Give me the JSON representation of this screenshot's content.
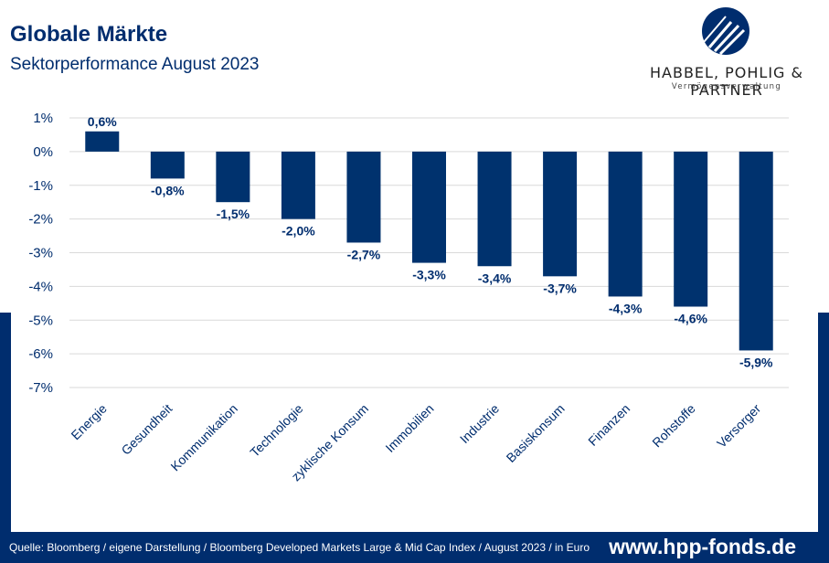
{
  "header": {
    "title": "Globale Märkte",
    "subtitle": "Sektorperformance August 2023"
  },
  "logo": {
    "name": "HABBEL, POHLIG & PARTNER",
    "tagline": "Vermögensverwaltung"
  },
  "footer": {
    "source": "Quelle: Bloomberg / eigene Darstellung / Bloomberg Developed Markets Large & Mid Cap Index / August 2023 / in Euro",
    "url": "www.hpp-fonds.de"
  },
  "colors": {
    "brand": "#002d6e",
    "bar": "#00326e",
    "grid": "#d9d9d9",
    "axis_text": "#002d6e"
  },
  "chart_data": {
    "type": "bar",
    "title": "",
    "xlabel": "",
    "ylabel": "",
    "categories": [
      "Energie",
      "Gesundheit",
      "Kommunikation",
      "Technologie",
      "zyklische Konsum",
      "Immobilien",
      "Industrie",
      "Basiskonsum",
      "Finanzen",
      "Rohstoffe",
      "Versorger"
    ],
    "values": [
      0.6,
      -0.8,
      -1.5,
      -2.0,
      -2.7,
      -3.3,
      -3.4,
      -3.7,
      -4.3,
      -4.6,
      -5.9
    ],
    "data_labels": [
      "0,6%",
      "-0,8%",
      "-1,5%",
      "-2,0%",
      "-2,7%",
      "-3,3%",
      "-3,4%",
      "-3,7%",
      "-4,3%",
      "-4,6%",
      "-5,9%"
    ],
    "yticks": [
      1,
      0,
      -1,
      -2,
      -3,
      -4,
      -5,
      -6,
      -7
    ],
    "ytick_labels": [
      "1%",
      "0%",
      "-1%",
      "-2%",
      "-3%",
      "-4%",
      "-5%",
      "-6%",
      "-7%"
    ],
    "ylim": [
      -7,
      1
    ],
    "grid": true,
    "legend": "none"
  }
}
